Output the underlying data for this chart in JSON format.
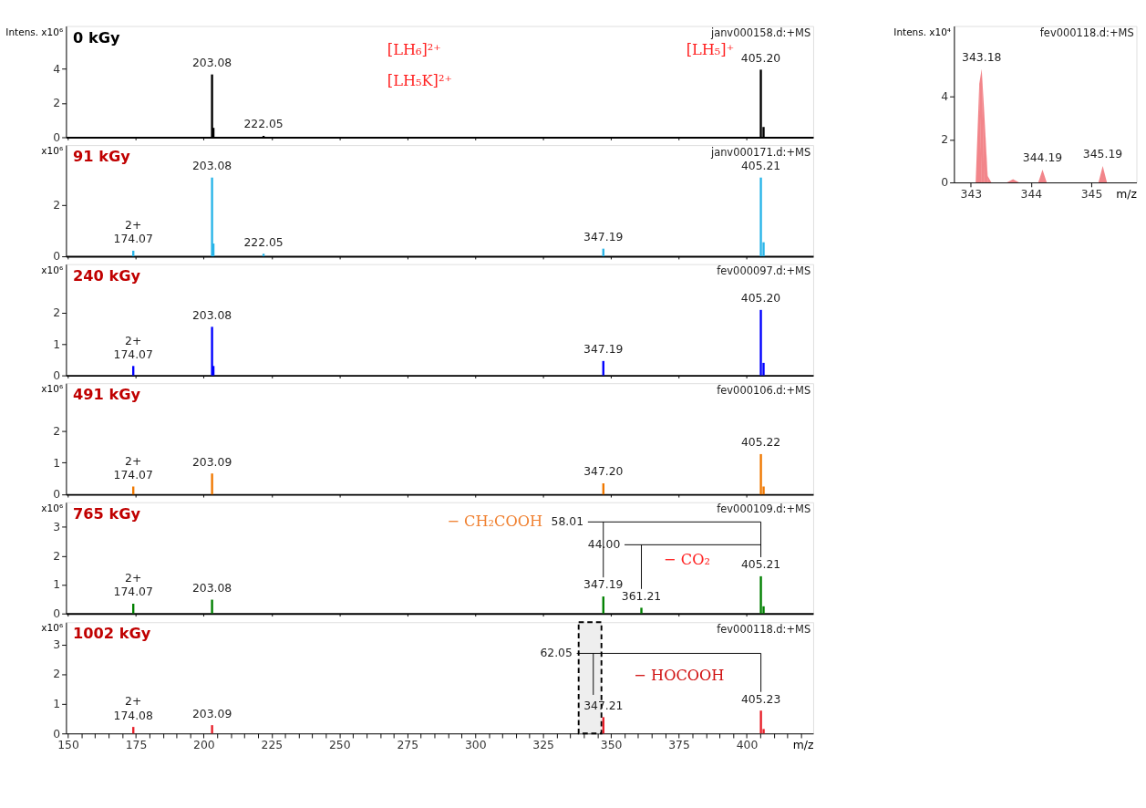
{
  "chart_data": [
    {
      "type": "bar",
      "title": "0 kGy",
      "subtitle": "janv000158.d:+MS",
      "ylabel": "Intens. x10⁶",
      "xlim": [
        149.3,
        424.5
      ],
      "ylim": [
        0,
        6.5
      ],
      "yticks": [
        0,
        2,
        4
      ],
      "tick_labels": "y",
      "xticks": [
        150,
        175,
        200,
        225,
        250,
        275,
        300,
        325,
        350,
        375,
        400
      ],
      "series": [
        {
          "color": "#000000",
          "x": [
            203.08,
            203.58,
            222.05,
            405.2,
            406.2
          ],
          "values": [
            3.67,
            0.55,
            0.08,
            3.95,
            0.6
          ]
        }
      ],
      "annotations": [
        {
          "text": "203.08",
          "x": 203.08,
          "y": 3.67
        },
        {
          "text": "222.05",
          "x": 222.05,
          "y": 0.08
        },
        {
          "text": "405.20",
          "x": 405.2,
          "y": 3.95
        },
        "[LH₆]²⁺",
        "[LH₅K]²⁺",
        "[LH₅]⁺"
      ]
    },
    {
      "type": "bar",
      "title": "91 kGy",
      "subtitle": "janv000171.d:+MS",
      "ylabel": "x10⁶",
      "xlim": [
        149.3,
        424.5
      ],
      "ylim": [
        0,
        4.35
      ],
      "yticks": [
        0,
        2
      ],
      "tick_labels": "y",
      "xticks": [
        150,
        175,
        200,
        225,
        250,
        275,
        300,
        325,
        350,
        375,
        400
      ],
      "series": [
        {
          "color": "#29b5e8",
          "x": [
            174.07,
            203.08,
            203.58,
            222.05,
            347.19,
            405.21,
            406.21
          ],
          "values": [
            0.22,
            3.08,
            0.5,
            0.1,
            0.3,
            3.08,
            0.55
          ]
        }
      ],
      "annotations": [
        {
          "text": "2+\n174.07",
          "x": 174.07,
          "y": 0.22
        },
        {
          "text": "203.08",
          "x": 203.08,
          "y": 3.08
        },
        {
          "text": "222.05",
          "x": 222.05,
          "y": 0.1
        },
        {
          "text": "347.19",
          "x": 347.19,
          "y": 0.3
        },
        {
          "text": "405.21",
          "x": 405.21,
          "y": 3.08
        }
      ]
    },
    {
      "type": "bar",
      "title": "240 kGy",
      "subtitle": "fev000097.d:+MS",
      "ylabel": "x10⁶",
      "xlim": [
        149.3,
        424.5
      ],
      "ylim": [
        0,
        3.55
      ],
      "yticks": [
        0,
        1,
        2
      ],
      "tick_labels": "y",
      "xticks": [
        150,
        175,
        200,
        225,
        250,
        275,
        300,
        325,
        350,
        375,
        400
      ],
      "series": [
        {
          "color": "#0000ff",
          "x": [
            174.07,
            203.08,
            203.58,
            347.19,
            405.2,
            406.2
          ],
          "values": [
            0.3,
            1.55,
            0.3,
            0.46,
            2.09,
            0.4
          ]
        }
      ],
      "annotations": [
        {
          "text": "2+\n174.07",
          "x": 174.07,
          "y": 0.3
        },
        {
          "text": "203.08",
          "x": 203.08,
          "y": 1.55
        },
        {
          "text": "347.19",
          "x": 347.19,
          "y": 0.46
        },
        {
          "text": "405.20",
          "x": 405.2,
          "y": 2.09
        }
      ]
    },
    {
      "type": "bar",
      "title": "491 kGy",
      "subtitle": "fev000106.d:+MS",
      "ylabel": "x10⁶",
      "xlim": [
        149.3,
        424.5
      ],
      "ylim": [
        0,
        3.5
      ],
      "yticks": [
        0,
        1,
        2
      ],
      "tick_labels": "y",
      "xticks": [
        150,
        175,
        200,
        225,
        250,
        275,
        300,
        325,
        350,
        375,
        400
      ],
      "series": [
        {
          "color": "#f07800",
          "x": [
            174.07,
            203.09,
            347.2,
            405.22,
            406.22
          ],
          "values": [
            0.25,
            0.66,
            0.35,
            1.27,
            0.25
          ]
        }
      ],
      "annotations": [
        {
          "text": "2+\n174.07",
          "x": 174.07,
          "y": 0.25
        },
        {
          "text": "203.09",
          "x": 203.09,
          "y": 0.66
        },
        {
          "text": "347.20",
          "x": 347.2,
          "y": 0.35
        },
        {
          "text": "405.22",
          "x": 405.22,
          "y": 1.27
        }
      ]
    },
    {
      "type": "bar",
      "title": "765 kGy",
      "subtitle": "fev000109.d:+MS",
      "ylabel": "x10⁶",
      "xlim": [
        149.3,
        424.5
      ],
      "ylim": [
        0,
        3.85
      ],
      "yticks": [
        0,
        1,
        2,
        3
      ],
      "tick_labels": "y",
      "xticks": [
        150,
        175,
        200,
        225,
        250,
        275,
        300,
        325,
        350,
        375,
        400
      ],
      "series": [
        {
          "color": "#008000",
          "x": [
            174.07,
            203.08,
            347.19,
            361.21,
            405.21,
            406.21
          ],
          "values": [
            0.34,
            0.48,
            0.59,
            0.2,
            1.29,
            0.25
          ]
        },
        {
          "type": "line",
          "color": "#000000",
          "x": [
            341.5,
            405.21,
            405.21
          ],
          "values": [
            3.17,
            3.17,
            1.95
          ]
        },
        {
          "type": "line",
          "color": "#000000",
          "x": [
            347.19,
            347.19
          ],
          "values": [
            3.17,
            1.25
          ]
        },
        {
          "type": "line",
          "color": "#000000",
          "x": [
            355,
            405.21
          ],
          "values": [
            2.38,
            2.38
          ]
        },
        {
          "type": "line",
          "color": "#000000",
          "x": [
            361.21,
            361.21
          ],
          "values": [
            2.38,
            0.85
          ]
        }
      ],
      "annotations": [
        {
          "text": "2+\n174.07",
          "x": 174.07,
          "y": 0.34
        },
        {
          "text": "203.08",
          "x": 203.08,
          "y": 0.48
        },
        {
          "text": "347.19",
          "x": 347.19,
          "y": 0.59
        },
        {
          "text": "361.21",
          "x": 361.21,
          "y": 0.2
        },
        {
          "text": "405.21",
          "x": 405.21,
          "y": 1.29
        },
        {
          "text": "58.01",
          "x": 341.5,
          "y": 3.17
        },
        {
          "text": "44.00",
          "x": 355,
          "y": 2.38
        },
        "− CH₂COOH",
        "− CO₂"
      ]
    },
    {
      "type": "bar",
      "title": "1002 kGy",
      "subtitle": "fev000118.d:+MS",
      "ylabel": "x10⁶",
      "xlabel": "m/z",
      "xlim": [
        149.3,
        424.5
      ],
      "ylim": [
        0,
        3.75
      ],
      "yticks": [
        0,
        1,
        2,
        3
      ],
      "xticks": [
        150,
        {
          "value": 155,
          "label": null
        },
        {
          "value": 160,
          "label": null
        },
        {
          "value": 165,
          "label": null
        },
        {
          "value": 170,
          "label": null
        },
        175,
        {
          "value": 180,
          "label": null
        },
        {
          "value": 185,
          "label": null
        },
        {
          "value": 190,
          "label": null
        },
        {
          "value": 195,
          "label": null
        },
        200,
        {
          "value": 205,
          "label": null
        },
        {
          "value": 210,
          "label": null
        },
        {
          "value": 215,
          "label": null
        },
        {
          "value": 220,
          "label": null
        },
        225,
        {
          "value": 230,
          "label": null
        },
        {
          "value": 235,
          "label": null
        },
        {
          "value": 240,
          "label": null
        },
        {
          "value": 245,
          "label": null
        },
        250,
        {
          "value": 255,
          "label": null
        },
        {
          "value": 260,
          "label": null
        },
        {
          "value": 265,
          "label": null
        },
        {
          "value": 270,
          "label": null
        },
        275,
        {
          "value": 280,
          "label": null
        },
        {
          "value": 285,
          "label": null
        },
        {
          "value": 290,
          "label": null
        },
        {
          "value": 295,
          "label": null
        },
        300,
        {
          "value": 305,
          "label": null
        },
        {
          "value": 310,
          "label": null
        },
        {
          "value": 315,
          "label": null
        },
        {
          "value": 320,
          "label": null
        },
        325,
        {
          "value": 330,
          "label": null
        },
        {
          "value": 335,
          "label": null
        },
        {
          "value": 340,
          "label": null
        },
        {
          "value": 345,
          "label": null
        },
        350,
        {
          "value": 355,
          "label": null
        },
        {
          "value": 360,
          "label": null
        },
        {
          "value": 365,
          "label": null
        },
        {
          "value": 370,
          "label": null
        },
        375,
        {
          "value": 380,
          "label": null
        },
        {
          "value": 385,
          "label": null
        },
        {
          "value": 390,
          "label": null
        },
        {
          "value": 395,
          "label": null
        },
        400,
        {
          "value": 405,
          "label": null
        },
        {
          "value": 410,
          "label": null
        },
        {
          "value": 415,
          "label": null
        },
        {
          "value": 420,
          "label": null
        }
      ],
      "series": [
        {
          "color": "#e8202a",
          "x": [
            174.08,
            203.09,
            347.21,
            405.23,
            406.23
          ],
          "values": [
            0.22,
            0.28,
            0.55,
            0.77,
            0.15
          ]
        },
        {
          "type": "line",
          "color": "#000000",
          "x": [
            337.4,
            405.23,
            405.23
          ],
          "values": [
            2.7,
            2.7,
            1.4
          ]
        },
        {
          "type": "line",
          "color": "#000000",
          "x": [
            343.5,
            343.5
          ],
          "values": [
            2.7,
            1.3
          ]
        }
      ],
      "annotations": [
        {
          "text": "2+\n174.08",
          "x": 174.08,
          "y": 0.22
        },
        {
          "text": "203.09",
          "x": 203.09,
          "y": 0.28
        },
        {
          "text": "347.21",
          "x": 347.21,
          "y": 0.55
        },
        {
          "text": "405.23",
          "x": 405.23,
          "y": 0.77
        },
        {
          "text": "62.05",
          "x": 337.4,
          "y": 2.7
        },
        "− HOCOOH"
      ],
      "bands": [
        {
          "axis": "x",
          "from": 338.1,
          "to": 346.5,
          "color": "#eeeeee"
        }
      ]
    },
    {
      "type": "area",
      "subtitle": "fev000118.d:+MS",
      "ylabel": "Intens. x10⁴",
      "xlabel": "m/z",
      "xlim": [
        342.72,
        345.75
      ],
      "ylim": [
        0,
        7.3
      ],
      "yticks": [
        0,
        2,
        4
      ],
      "xticks": [
        343,
        344,
        345
      ],
      "series": [
        {
          "color": "#e8202a",
          "x": [
            342.8,
            343.08,
            343.14,
            343.18,
            343.22,
            343.28,
            343.34,
            343.6,
            343.7,
            343.8,
            344.12,
            344.19,
            344.26,
            344.6,
            345.12,
            345.19,
            345.26,
            345.7
          ],
          "values": [
            0,
            0,
            4.6,
            5.3,
            3.4,
            0.3,
            0,
            0,
            0.15,
            0,
            0,
            0.6,
            0,
            0,
            0,
            0.77,
            0,
            0
          ]
        }
      ],
      "annotations": [
        {
          "text": "343.18",
          "x": 343.18,
          "y": 5.3
        },
        {
          "text": "344.19",
          "x": 344.19,
          "y": 0.6
        },
        {
          "text": "345.19",
          "x": 345.19,
          "y": 0.77
        }
      ]
    }
  ]
}
